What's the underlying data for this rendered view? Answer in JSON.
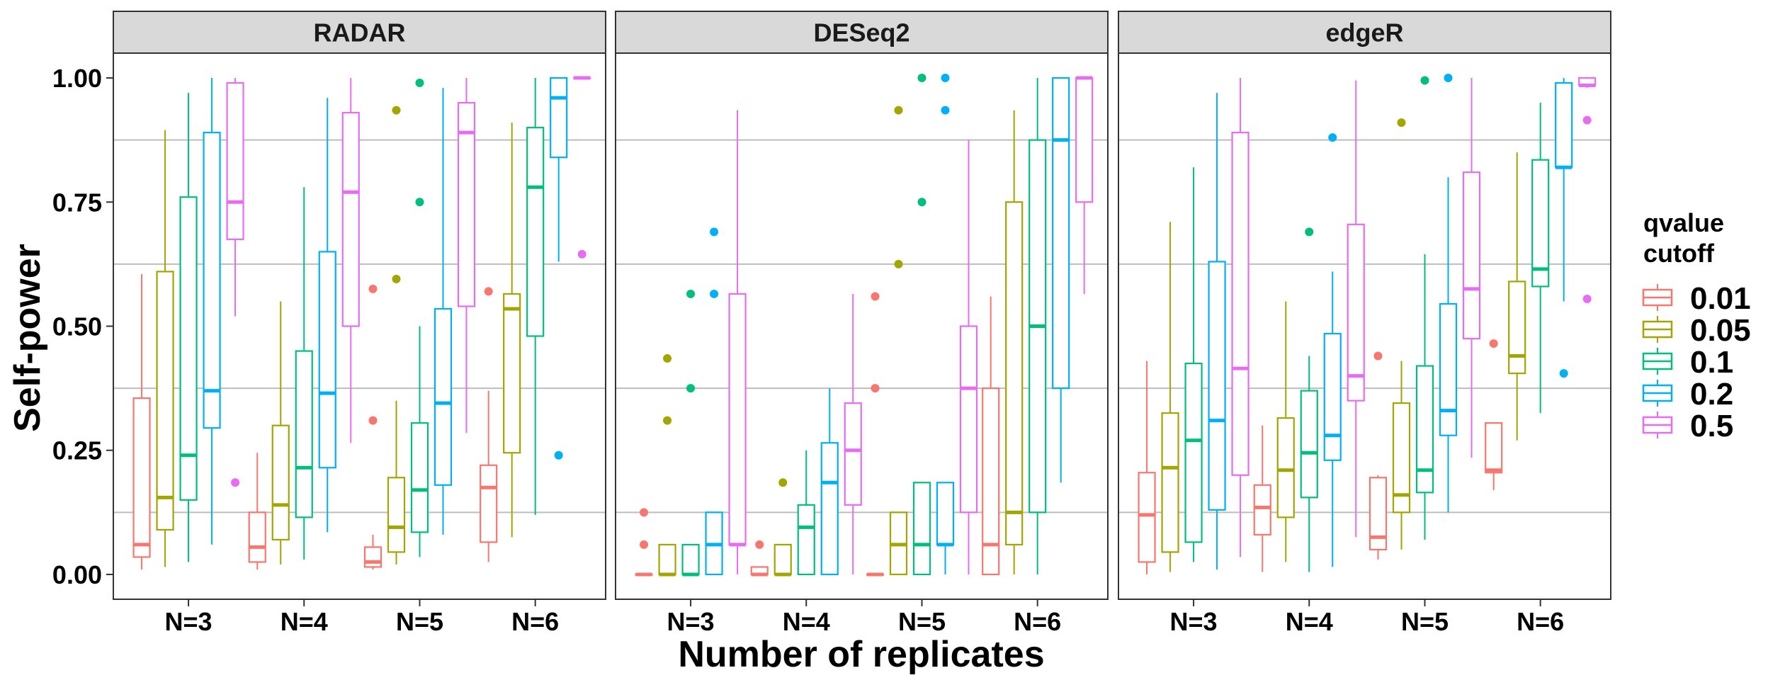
{
  "chart_data": {
    "type": "boxplot",
    "facets": [
      "RADAR",
      "DESeq2",
      "edgeR"
    ],
    "categories": [
      "N=3",
      "N=4",
      "N=5",
      "N=6"
    ],
    "xlabel": "Number of replicates",
    "ylabel": "Self-power",
    "ylim": [
      -0.05,
      1.05
    ],
    "yticks": [
      "0.00",
      "0.25",
      "0.50",
      "0.75",
      "1.00"
    ],
    "ytick_values": [
      0,
      0.25,
      0.5,
      0.75,
      1.0
    ],
    "grid_lines": [
      0.125,
      0.375,
      0.625,
      0.875
    ],
    "legend": {
      "title_line1": "qvalue",
      "title_line2": "cutoff",
      "position": "right",
      "entries": [
        "0.01",
        "0.05",
        "0.1",
        "0.2",
        "0.5"
      ]
    },
    "colors": [
      "#F8766D",
      "#A3A500",
      "#00BF7D",
      "#00B0F6",
      "#E76BF3"
    ],
    "series": [
      {
        "name": "0.01",
        "boxes": [
          [
            [
              0.01,
              0.035,
              0.06,
              0.355,
              0.605
            ],
            [
              0.01,
              0.025,
              0.055,
              0.125,
              0.245
            ],
            [
              0.01,
              0.015,
              0.025,
              0.055,
              0.08
            ],
            [
              0.025,
              0.065,
              0.175,
              0.22,
              0.37
            ]
          ],
          [
            [
              0,
              0,
              0,
              0,
              0
            ],
            [
              0,
              0,
              0,
              0.015,
              0.015
            ],
            [
              0,
              0,
              0,
              0,
              0
            ],
            [
              0,
              0,
              0.06,
              0.375,
              0.56
            ]
          ],
          [
            [
              0,
              0.025,
              0.12,
              0.205,
              0.43
            ],
            [
              0.005,
              0.08,
              0.135,
              0.18,
              0.3
            ],
            [
              0.03,
              0.05,
              0.075,
              0.195,
              0.2
            ],
            [
              0.17,
              0.205,
              0.21,
              0.305,
              0.305
            ]
          ]
        ],
        "outliers": [
          [
            [],
            [],
            [
              0.575,
              0.31
            ],
            [
              0.57
            ]
          ],
          [
            [
              0.125,
              0.06
            ],
            [
              0.06
            ],
            [
              0.56,
              0.375
            ],
            []
          ],
          [
            [],
            [],
            [
              0.44
            ],
            [
              0.465
            ]
          ]
        ]
      },
      {
        "name": "0.05",
        "boxes": [
          [
            [
              0.015,
              0.09,
              0.155,
              0.61,
              0.895
            ],
            [
              0.02,
              0.07,
              0.14,
              0.3,
              0.55
            ],
            [
              0.02,
              0.045,
              0.095,
              0.195,
              0.35
            ],
            [
              0.075,
              0.245,
              0.535,
              0.565,
              0.91
            ]
          ],
          [
            [
              0,
              0,
              0,
              0.06,
              0.06
            ],
            [
              0,
              0,
              0,
              0.06,
              0.06
            ],
            [
              0,
              0,
              0.06,
              0.125,
              0.125
            ],
            [
              0,
              0.06,
              0.125,
              0.75,
              0.935
            ]
          ],
          [
            [
              0.005,
              0.045,
              0.215,
              0.325,
              0.71
            ],
            [
              0.025,
              0.115,
              0.21,
              0.315,
              0.55
            ],
            [
              0.05,
              0.125,
              0.16,
              0.345,
              0.43
            ],
            [
              0.27,
              0.405,
              0.44,
              0.59,
              0.85
            ]
          ]
        ],
        "outliers": [
          [
            [],
            [],
            [
              0.935,
              0.595
            ],
            []
          ],
          [
            [
              0.435,
              0.31
            ],
            [
              0.185
            ],
            [
              0.935,
              0.625
            ],
            []
          ],
          [
            [],
            [],
            [
              0.91
            ],
            []
          ]
        ]
      },
      {
        "name": "0.1",
        "boxes": [
          [
            [
              0.025,
              0.15,
              0.24,
              0.76,
              0.97
            ],
            [
              0.03,
              0.115,
              0.215,
              0.45,
              0.78
            ],
            [
              0.035,
              0.085,
              0.17,
              0.305,
              0.5
            ],
            [
              0.12,
              0.48,
              0.78,
              0.9,
              1.0
            ]
          ],
          [
            [
              0,
              0,
              0,
              0.06,
              0.06
            ],
            [
              0,
              0,
              0.095,
              0.14,
              0.25
            ],
            [
              0,
              0,
              0.06,
              0.185,
              0.185
            ],
            [
              0,
              0.125,
              0.5,
              0.875,
              1.0
            ]
          ],
          [
            [
              0.025,
              0.065,
              0.27,
              0.425,
              0.82
            ],
            [
              0.005,
              0.155,
              0.245,
              0.37,
              0.44
            ],
            [
              0.07,
              0.165,
              0.21,
              0.42,
              0.645
            ],
            [
              0.325,
              0.58,
              0.615,
              0.835,
              0.95
            ]
          ]
        ],
        "outliers": [
          [
            [],
            [],
            [
              0.99,
              0.75
            ],
            []
          ],
          [
            [
              0.565,
              0.375
            ],
            [],
            [
              1.0,
              0.75
            ],
            []
          ],
          [
            [],
            [
              0.69
            ],
            [
              0.995
            ],
            []
          ]
        ]
      },
      {
        "name": "0.2",
        "boxes": [
          [
            [
              0.06,
              0.295,
              0.37,
              0.89,
              1.0
            ],
            [
              0.085,
              0.215,
              0.365,
              0.65,
              0.96
            ],
            [
              0.08,
              0.18,
              0.345,
              0.535,
              0.98
            ],
            [
              0.63,
              0.84,
              0.96,
              1.0,
              1.0
            ]
          ],
          [
            [
              0,
              0,
              0.06,
              0.125,
              0.125
            ],
            [
              0,
              0,
              0.185,
              0.265,
              0.375
            ],
            [
              0,
              0.06,
              0.06,
              0.185,
              0.185
            ],
            [
              0.185,
              0.375,
              0.875,
              1.0,
              1.0
            ]
          ],
          [
            [
              0.01,
              0.13,
              0.31,
              0.63,
              0.97
            ],
            [
              0.015,
              0.23,
              0.28,
              0.485,
              0.61
            ],
            [
              0.125,
              0.28,
              0.33,
              0.545,
              0.8
            ],
            [
              0.55,
              0.82,
              0.82,
              0.99,
              1.0
            ]
          ]
        ],
        "outliers": [
          [
            [],
            [],
            [],
            [
              0.24
            ]
          ],
          [
            [
              0.69,
              0.565
            ],
            [],
            [
              1.0,
              0.935
            ],
            []
          ],
          [
            [],
            [
              0.88
            ],
            [
              1.0
            ],
            [
              0.405
            ]
          ]
        ]
      },
      {
        "name": "0.5",
        "boxes": [
          [
            [
              0.52,
              0.675,
              0.75,
              0.99,
              1.0
            ],
            [
              0.265,
              0.5,
              0.77,
              0.93,
              1.0
            ],
            [
              0.285,
              0.54,
              0.89,
              0.95,
              1.0
            ],
            [
              1.0,
              1.0,
              1.0,
              1.0,
              1.0
            ]
          ],
          [
            [
              0,
              0.06,
              0.06,
              0.565,
              0.935
            ],
            [
              0,
              0.14,
              0.25,
              0.345,
              0.565
            ],
            [
              0,
              0.125,
              0.375,
              0.5,
              0.875
            ],
            [
              0.565,
              0.75,
              1.0,
              1.0,
              1.0
            ]
          ],
          [
            [
              0.035,
              0.2,
              0.415,
              0.89,
              1.0
            ],
            [
              0.075,
              0.35,
              0.4,
              0.705,
              0.995
            ],
            [
              0.235,
              0.475,
              0.575,
              0.81,
              1.0
            ],
            [
              0.98,
              0.985,
              0.985,
              1.0,
              1.0
            ]
          ]
        ],
        "outliers": [
          [
            [
              0.185
            ],
            [],
            [],
            [
              0.645
            ]
          ],
          [
            [],
            [],
            [],
            []
          ],
          [
            [],
            [],
            [],
            [
              0.915,
              0.555
            ]
          ]
        ]
      }
    ]
  }
}
